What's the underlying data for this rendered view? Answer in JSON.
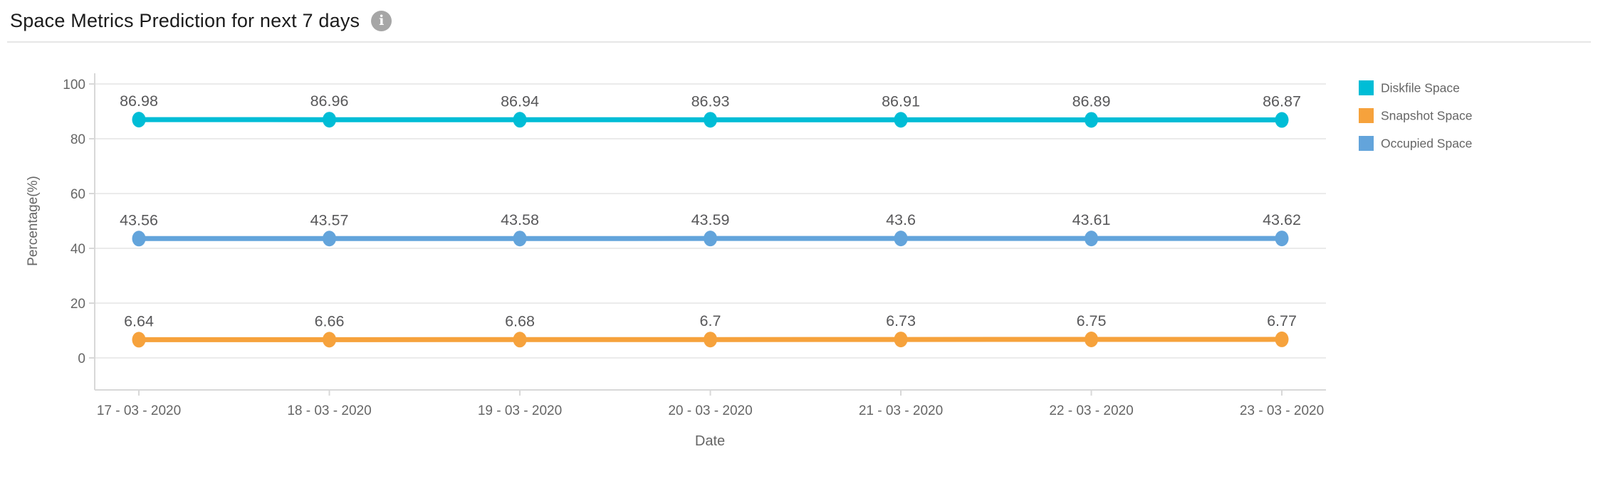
{
  "header": {
    "title": "Space Metrics Prediction for next 7 days",
    "info_icon": "i"
  },
  "chart_data": {
    "type": "line",
    "title": "Space Metrics Prediction for next 7 days",
    "categories": [
      "17 - 03 - 2020",
      "18 - 03 - 2020",
      "19 - 03 - 2020",
      "20 - 03 - 2020",
      "21 - 03 - 2020",
      "22 - 03 - 2020",
      "23 - 03 - 2020"
    ],
    "series": [
      {
        "name": "Diskfile Space",
        "color": "#00bdd6",
        "values": [
          86.98,
          86.96,
          86.94,
          86.93,
          86.91,
          86.89,
          86.87
        ]
      },
      {
        "name": "Snapshot Space",
        "color": "#f6a23c",
        "values": [
          6.64,
          6.66,
          6.68,
          6.7,
          6.73,
          6.75,
          6.77
        ]
      },
      {
        "name": "Occupied Space",
        "color": "#63a4db",
        "values": [
          43.56,
          43.57,
          43.58,
          43.59,
          43.6,
          43.61,
          43.62
        ]
      }
    ],
    "xlabel": "Date",
    "ylabel": "Percentage(%)",
    "ylim": [
      0,
      100
    ],
    "yticks": [
      0,
      20,
      40,
      60,
      80,
      100
    ],
    "grid": true,
    "legend_position": "top-right",
    "show_data_labels": true,
    "colors": {
      "grid_line": "#ebebeb",
      "axis_line": "#d8d8d8",
      "tick_label": "#666666",
      "axis_title": "#666666",
      "data_label": "#58585a",
      "legend_label": "#666666",
      "title_text": "#1b1b1b",
      "info_icon_bg": "#a6a6a6"
    }
  }
}
